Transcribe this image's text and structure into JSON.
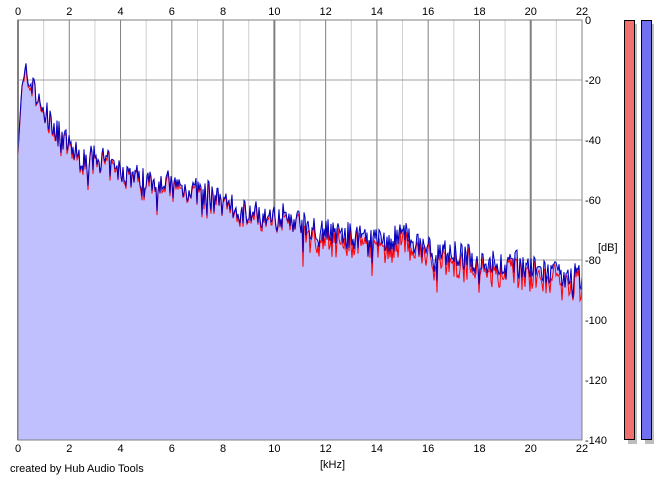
{
  "credit": "created by Hub Audio Tools",
  "x_unit_label": "[kHz]",
  "y_unit_label": "[dB]",
  "meters": {
    "left_color": "#f07070",
    "right_color": "#7070f0"
  },
  "chart_data": {
    "type": "area",
    "xlabel": "[kHz]",
    "ylabel": "[dB]",
    "xlim": [
      0,
      22
    ],
    "ylim": [
      -140,
      0
    ],
    "x_ticks": [
      "0",
      "2",
      "4",
      "6",
      "8",
      "10",
      "12",
      "14",
      "16",
      "18",
      "20",
      "22"
    ],
    "y_ticks": [
      "0",
      "-20",
      "-40",
      "-60",
      "-80",
      "-100",
      "-120",
      "-140"
    ],
    "grid": true,
    "colors": {
      "fill": "#c0c0ff",
      "left_channel": "#ff0000",
      "right_channel": "#0000c0",
      "grid": "#a0a0a0",
      "major_grid": "#808080"
    },
    "series": [
      {
        "x": [
          0,
          0.1,
          0.2,
          0.3,
          0.4,
          0.5,
          0.6,
          0.7,
          0.8,
          1.0,
          1.2,
          1.4,
          1.6,
          1.8,
          2.0,
          2.3,
          2.6,
          3.0,
          3.4,
          3.8,
          4.2,
          4.6,
          5.0,
          5.5,
          6.0,
          6.5,
          7.0,
          7.5,
          8.0,
          8.5,
          9.0,
          9.5,
          10.0,
          10.5,
          11.0,
          11.5,
          12.0,
          12.5,
          13.0,
          13.5,
          14.0,
          14.5,
          15.0,
          15.5,
          16.0,
          16.5,
          17.0,
          17.5,
          18.0,
          18.5,
          19.0,
          19.5,
          20.0,
          20.5,
          21.0,
          21.5,
          22.0
        ],
        "values": [
          -40,
          -28,
          -22,
          -18,
          -20,
          -22,
          -19,
          -25,
          -28,
          -30,
          -33,
          -36,
          -38,
          -40,
          -42,
          -45,
          -47,
          -46,
          -47,
          -50,
          -51,
          -52,
          -53,
          -53,
          -55,
          -56,
          -57,
          -58,
          -62,
          -63,
          -64,
          -65,
          -64,
          -66,
          -67,
          -69,
          -70,
          -71,
          -72,
          -73,
          -73,
          -74,
          -71,
          -75,
          -76,
          -77,
          -78,
          -79,
          -80,
          -81,
          -82,
          -81,
          -83,
          -84,
          -85,
          -85,
          -86
        ]
      }
    ]
  }
}
